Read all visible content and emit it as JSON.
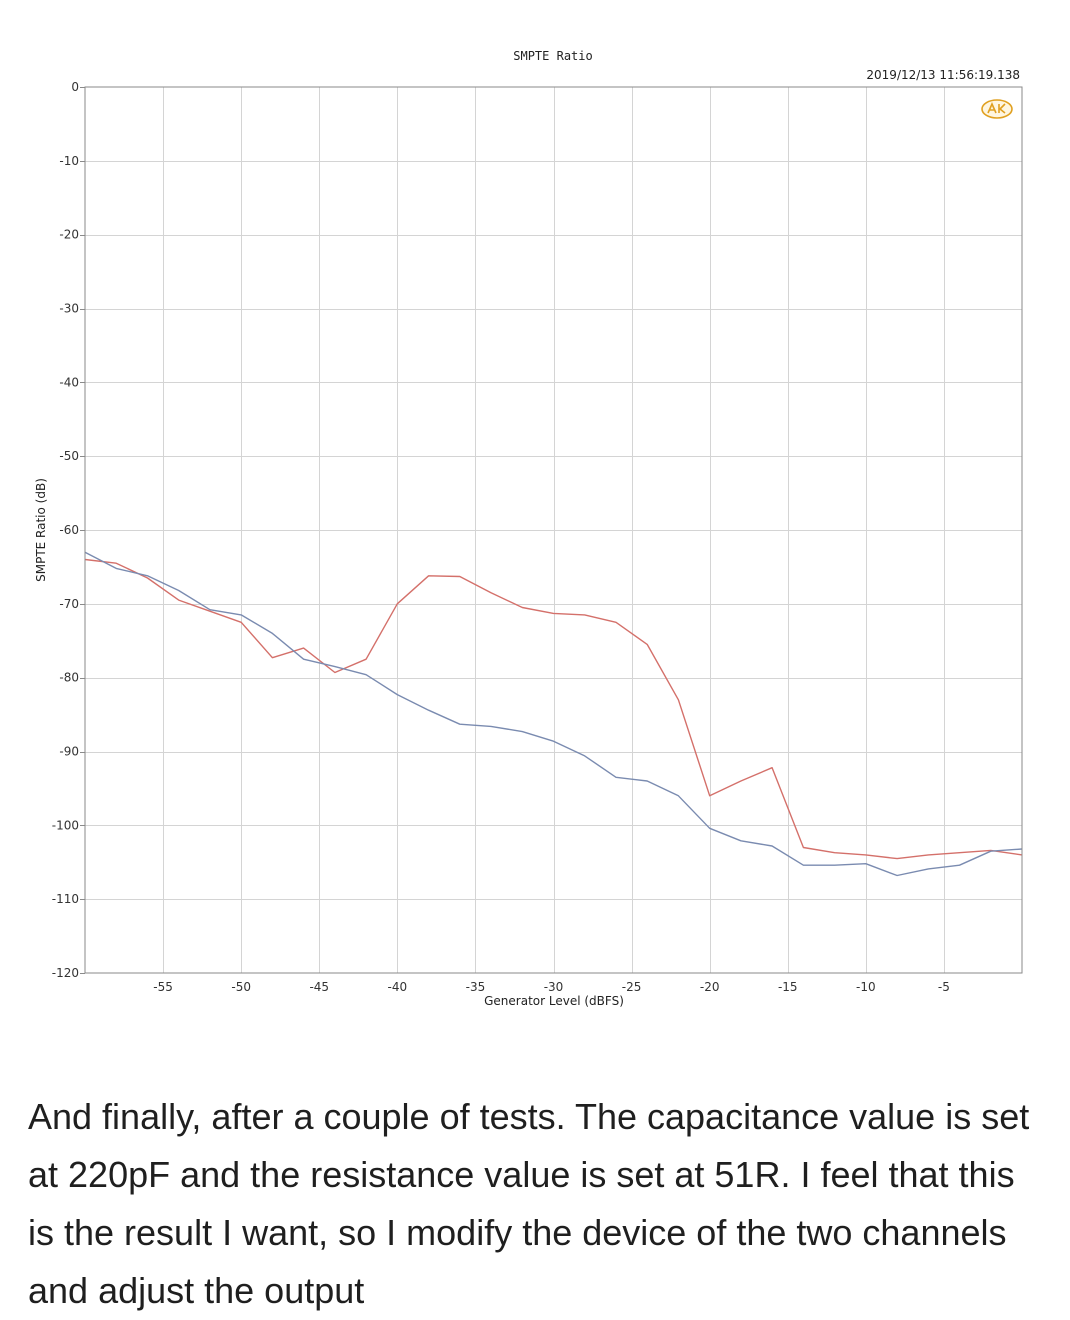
{
  "chart_data": {
    "type": "line",
    "title": "SMPTE Ratio",
    "timestamp": "2019/12/13 11:56:19.138",
    "xlabel": "Generator Level (dBFS)",
    "ylabel": "SMPTE Ratio (dB)",
    "xlim": [
      -60,
      0
    ],
    "ylim": [
      -120,
      0
    ],
    "x_ticks": [
      -55,
      -50,
      -45,
      -40,
      -35,
      -30,
      -25,
      -20,
      -15,
      -10,
      -5
    ],
    "y_ticks": [
      0,
      -10,
      -20,
      -30,
      -40,
      -50,
      -60,
      -70,
      -80,
      -90,
      -100,
      -110,
      -120
    ],
    "grid": true,
    "series": [
      {
        "color": "#d4706a",
        "points": [
          [
            -60,
            -64.0
          ],
          [
            -58,
            -64.5
          ],
          [
            -56,
            -66.5
          ],
          [
            -54,
            -69.5
          ],
          [
            -52,
            -71.0
          ],
          [
            -50,
            -72.5
          ],
          [
            -48,
            -77.3
          ],
          [
            -46,
            -76.0
          ],
          [
            -44,
            -79.3
          ],
          [
            -42,
            -77.5
          ],
          [
            -40,
            -70.0
          ],
          [
            -38,
            -66.2
          ],
          [
            -36,
            -66.3
          ],
          [
            -34,
            -68.5
          ],
          [
            -32,
            -70.5
          ],
          [
            -30,
            -71.3
          ],
          [
            -28,
            -71.5
          ],
          [
            -26,
            -72.5
          ],
          [
            -24,
            -75.5
          ],
          [
            -22,
            -83.0
          ],
          [
            -20,
            -96.0
          ],
          [
            -18,
            -94.0
          ],
          [
            -16,
            -92.2
          ],
          [
            -14,
            -103.0
          ],
          [
            -12,
            -103.7
          ],
          [
            -10,
            -104.0
          ],
          [
            -8,
            -104.5
          ],
          [
            -6,
            -104.0
          ],
          [
            -4,
            -103.7
          ],
          [
            -2,
            -103.4
          ],
          [
            0,
            -104.0
          ]
        ]
      },
      {
        "color": "#7a8bb0",
        "points": [
          [
            -60,
            -63.0
          ],
          [
            -58,
            -65.2
          ],
          [
            -56,
            -66.2
          ],
          [
            -54,
            -68.2
          ],
          [
            -52,
            -70.8
          ],
          [
            -50,
            -71.5
          ],
          [
            -48,
            -74.0
          ],
          [
            -46,
            -77.5
          ],
          [
            -44,
            -78.5
          ],
          [
            -42,
            -79.6
          ],
          [
            -40,
            -82.3
          ],
          [
            -38,
            -84.4
          ],
          [
            -36,
            -86.3
          ],
          [
            -34,
            -86.6
          ],
          [
            -32,
            -87.3
          ],
          [
            -30,
            -88.6
          ],
          [
            -28,
            -90.6
          ],
          [
            -26,
            -93.5
          ],
          [
            -24,
            -94.0
          ],
          [
            -22,
            -96.0
          ],
          [
            -20,
            -100.4
          ],
          [
            -18,
            -102.1
          ],
          [
            -16,
            -102.8
          ],
          [
            -14,
            -105.4
          ],
          [
            -12,
            -105.4
          ],
          [
            -10,
            -105.2
          ],
          [
            -8,
            -106.8
          ],
          [
            -6,
            -105.9
          ],
          [
            -4,
            -105.4
          ],
          [
            -2,
            -103.5
          ],
          [
            0,
            -103.2
          ]
        ]
      }
    ]
  },
  "caption": "And finally, after a couple of tests. The capacitance value is set at 220pF and the resistance value is set at 51R. I feel that this is the result I want, so I modify the device of the two channels and adjust the output"
}
